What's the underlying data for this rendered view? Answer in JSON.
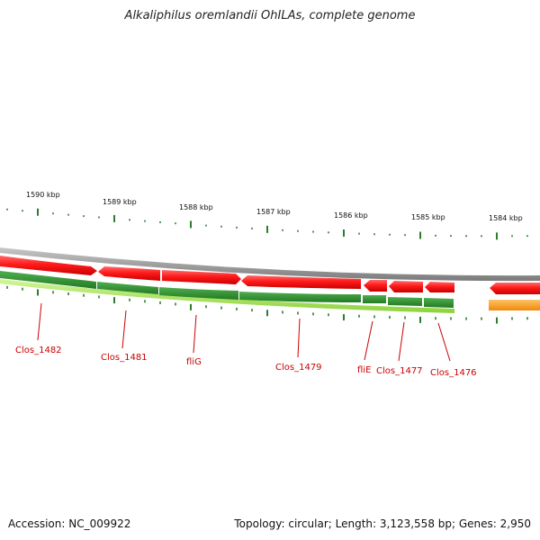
{
  "title": "Alkaliphilus oremlandii OhILAs, complete genome",
  "accession": "Accession: NC_009922",
  "summary": "Topology: circular; Length: 3,123,558 bp; Genes: 2,950",
  "colors": {
    "forward_cds": "#e00000",
    "track_green": "#2f8f2f",
    "track_light_green": "#9ad84a",
    "ticks": "#2d7d2d",
    "backbone": "#8c8c8c",
    "label_red": "#cc0000",
    "orange_feature": "#f59a18"
  },
  "kbp_ticks": [
    {
      "label": "1590 kbp"
    },
    {
      "label": "1589 kbp"
    },
    {
      "label": "1588 kbp"
    },
    {
      "label": "1587 kbp"
    },
    {
      "label": "1586 kbp"
    },
    {
      "label": "1585 kbp"
    },
    {
      "label": "1584 kbp"
    }
  ],
  "genes": [
    {
      "label": "Clos_1482"
    },
    {
      "label": "Clos_1481"
    },
    {
      "label": "fliG"
    },
    {
      "label": "Clos_1479"
    },
    {
      "label": "fliE"
    },
    {
      "label": "Clos_1477"
    },
    {
      "label": "Clos_1476"
    }
  ]
}
